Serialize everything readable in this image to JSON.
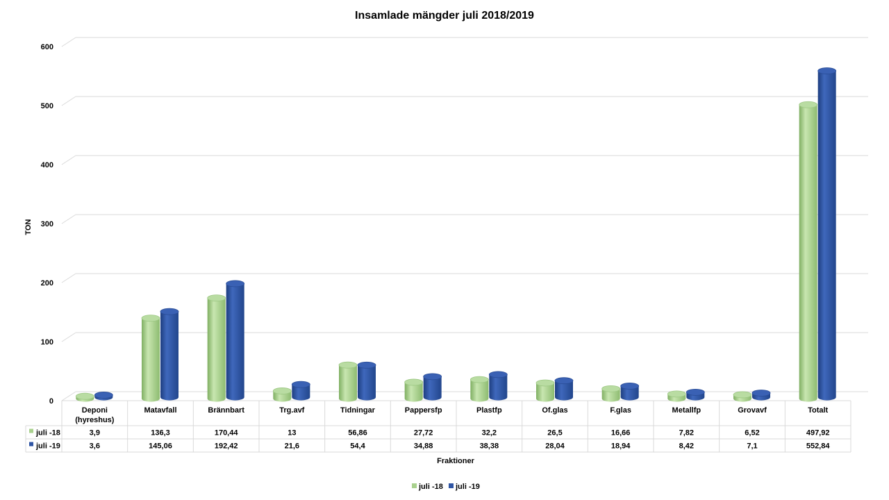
{
  "chart_data": {
    "type": "bar",
    "title": "Insamlade mängder juli 2018/2019",
    "xlabel": "Fraktioner",
    "ylabel": "TON",
    "ylim": [
      0,
      600
    ],
    "yticks": [
      "0",
      "100",
      "200",
      "300",
      "400",
      "500",
      "600"
    ],
    "grid": true,
    "legend_position": "bottom",
    "categories": [
      "Deponi (hyreshus)",
      "Matavfall",
      "Brännbart",
      "Trg.avf",
      "Tidningar",
      "Pappersfp",
      "Plastfp",
      "Of.glas",
      "F.glas",
      "Metallfp",
      "Grovavf",
      "Totalt"
    ],
    "category_lines": [
      [
        "Deponi",
        "(hyreshus)"
      ],
      [
        "Matavfall"
      ],
      [
        "Brännbart"
      ],
      [
        "Trg.avf"
      ],
      [
        "Tidningar"
      ],
      [
        "Pappersfp"
      ],
      [
        "Plastfp"
      ],
      [
        "Of.glas"
      ],
      [
        "F.glas"
      ],
      [
        "Metallfp"
      ],
      [
        "Grovavf"
      ],
      [
        "Totalt"
      ]
    ],
    "series": [
      {
        "name": "juli -18",
        "color": "#A9D18E",
        "values": [
          3.9,
          136.3,
          170.44,
          13,
          56.86,
          27.72,
          32.2,
          26.5,
          16.66,
          7.82,
          6.52,
          497.92
        ],
        "labels": [
          "3,9",
          "136,3",
          "170,44",
          "13",
          "56,86",
          "27,72",
          "32,2",
          "26,5",
          "16,66",
          "7,82",
          "6,52",
          "497,92"
        ]
      },
      {
        "name": "juli -19",
        "color": "#2F55A4",
        "values": [
          3.6,
          145.06,
          192.42,
          21.6,
          54.4,
          34.88,
          38.38,
          28.04,
          18.94,
          8.42,
          7.1,
          552.84
        ],
        "labels": [
          "3,6",
          "145,06",
          "192,42",
          "21,6",
          "54,4",
          "34,88",
          "38,38",
          "28,04",
          "18,94",
          "8,42",
          "7,1",
          "552,84"
        ]
      }
    ]
  }
}
